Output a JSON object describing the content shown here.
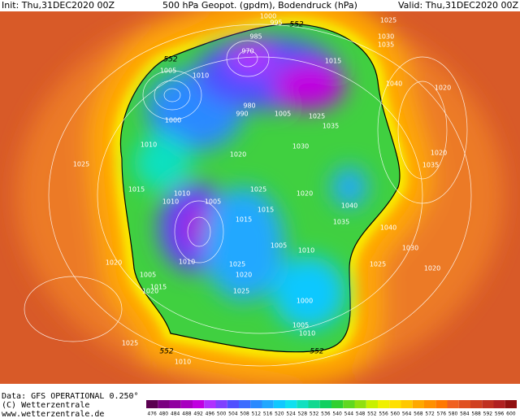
{
  "header": {
    "init": "Init: Thu,31DEC2020 00Z",
    "title": "500 hPa Geopot. (gpdm), Bodendruck (hPa)",
    "valid": "Valid: Thu,31DEC2020 00Z"
  },
  "footer": {
    "data": "Data: GFS OPERATIONAL 0.250°",
    "copyright": "(C) Wetterzentrale",
    "url": "www.wetterzentrale.de"
  },
  "colorbar": {
    "ticks": [
      476,
      480,
      484,
      488,
      492,
      496,
      500,
      504,
      508,
      512,
      516,
      520,
      524,
      528,
      532,
      536,
      540,
      544,
      548,
      552,
      556,
      560,
      564,
      568,
      572,
      576,
      580,
      584,
      588,
      592,
      596,
      600
    ],
    "colors": [
      "#5a0050",
      "#7a0080",
      "#9000a0",
      "#a800c0",
      "#c000e0",
      "#b030ff",
      "#8040ff",
      "#5050ff",
      "#3c6cff",
      "#2a8aff",
      "#20a8ff",
      "#10c8ff",
      "#10e0f0",
      "#10e0c0",
      "#10d890",
      "#10d060",
      "#30d030",
      "#60d820",
      "#90e010",
      "#c8f000",
      "#f0f000",
      "#ffe000",
      "#ffc800",
      "#ffa800",
      "#ff9000",
      "#ff7800",
      "#f06020",
      "#e05020",
      "#d04020",
      "#c03020",
      "#b02020",
      "#901010"
    ]
  },
  "contour_labels": [
    552,
    552,
    552,
    552,
    1000,
    995,
    985,
    970,
    1025,
    1030,
    1035,
    1015,
    1005,
    1010,
    1040,
    1020,
    1000,
    980,
    990,
    1005,
    1025,
    1035,
    1030,
    1010,
    1020,
    1020,
    1025,
    1035,
    1015,
    1025,
    1020,
    1010,
    1005,
    1010,
    1040,
    1015,
    1015,
    1035,
    1040,
    1005,
    1030,
    1010,
    1020,
    1010,
    1025,
    1025,
    1020,
    1020,
    1005,
    1015,
    1020,
    1025,
    1000,
    1005,
    1010,
    1025,
    1010
  ]
}
